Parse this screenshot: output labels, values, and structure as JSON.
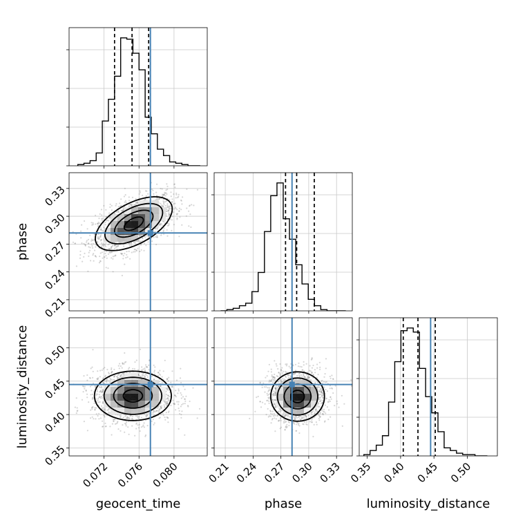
{
  "chart_data": {
    "type": "corner",
    "parameters": [
      "geocent_time",
      "phase",
      "luminosity_distance"
    ],
    "truths": {
      "geocent_time": 0.0773,
      "phase": 0.282,
      "luminosity_distance": 0.445
    },
    "truth_color": "#4682b4",
    "grid": true,
    "axes": {
      "geocent_time": {
        "label": "geocent_time",
        "range": [
          0.068,
          0.0838
        ],
        "ticks": [
          0.072,
          0.076,
          0.08
        ],
        "tick_labels": [
          "0.072",
          "0.076",
          "0.080"
        ]
      },
      "phase": {
        "label": "phase",
        "range": [
          0.198,
          0.347
        ],
        "ticks": [
          0.21,
          0.24,
          0.27,
          0.3,
          0.33
        ],
        "tick_labels": [
          "0.21",
          "0.24",
          "0.27",
          "0.30",
          "0.33"
        ]
      },
      "luminosity_distance": {
        "label": "luminosity_distance",
        "range": [
          0.338,
          0.545
        ],
        "ticks": [
          0.35,
          0.4,
          0.45,
          0.5
        ],
        "tick_labels": [
          "0.35",
          "0.40",
          "0.45",
          "0.50"
        ]
      }
    },
    "histograms": {
      "geocent_time": {
        "edges_range": [
          0.069,
          0.083
        ],
        "nbins": 20,
        "counts": [
          1,
          2,
          4,
          10,
          35,
          52,
          70,
          100,
          99,
          88,
          75,
          38,
          25,
          13,
          8,
          3,
          2,
          1,
          0,
          0
        ],
        "quantiles": [
          0.0732,
          0.0752,
          0.0771
        ]
      },
      "phase": {
        "edges_range": [
          0.205,
          0.34
        ],
        "nbins": 20,
        "counts": [
          0,
          1,
          2,
          4,
          6,
          15,
          30,
          62,
          90,
          100,
          72,
          56,
          36,
          21,
          9,
          4,
          1,
          0,
          0,
          0
        ],
        "quantiles": [
          0.275,
          0.287,
          0.306
        ]
      },
      "luminosity_distance": {
        "edges_range": [
          0.345,
          0.53
        ],
        "nbins": 20,
        "counts": [
          1,
          4,
          8,
          15,
          40,
          70,
          93,
          95,
          92,
          65,
          44,
          32,
          18,
          6,
          4,
          2,
          1,
          1,
          0,
          0
        ],
        "quantiles": [
          0.404,
          0.426,
          0.452
        ]
      }
    },
    "joint": [
      {
        "x": "geocent_time",
        "y": "phase",
        "center": [
          0.0754,
          0.292
        ],
        "sigma": [
          0.0022,
          0.0145
        ],
        "rho": 0.55
      },
      {
        "x": "geocent_time",
        "y": "luminosity_distance",
        "center": [
          0.0753,
          0.428
        ],
        "sigma": [
          0.0022,
          0.0185
        ],
        "rho": 0.0
      },
      {
        "x": "phase",
        "y": "luminosity_distance",
        "center": [
          0.288,
          0.427
        ],
        "sigma": [
          0.0145,
          0.0185
        ],
        "rho": 0.0
      }
    ],
    "contour_levels_sigma": [
      0.5,
      1.0,
      1.5,
      2.0
    ]
  }
}
